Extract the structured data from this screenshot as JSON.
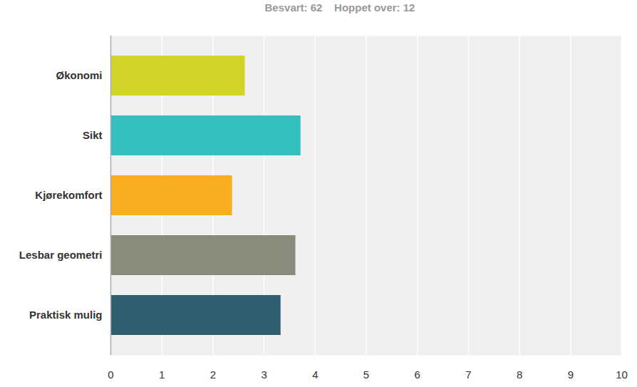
{
  "chart_data": {
    "type": "bar",
    "orientation": "horizontal",
    "subtitle": "Besvart: 62    Hoppet over: 12",
    "categories": [
      "Økonomi",
      "Sikt",
      "Kjørekomfort",
      "Lesbar geometri",
      "Praktisk mulig"
    ],
    "values": [
      2.63,
      3.72,
      2.38,
      3.62,
      3.33
    ],
    "colors": [
      "#d0d42a",
      "#33bec0",
      "#f7ae22",
      "#8b8b7b",
      "#2f5f6e"
    ],
    "xlim": [
      0,
      10
    ],
    "xticks": [
      0,
      1,
      2,
      3,
      4,
      5,
      6,
      7,
      8,
      9,
      10
    ],
    "grid": true
  }
}
